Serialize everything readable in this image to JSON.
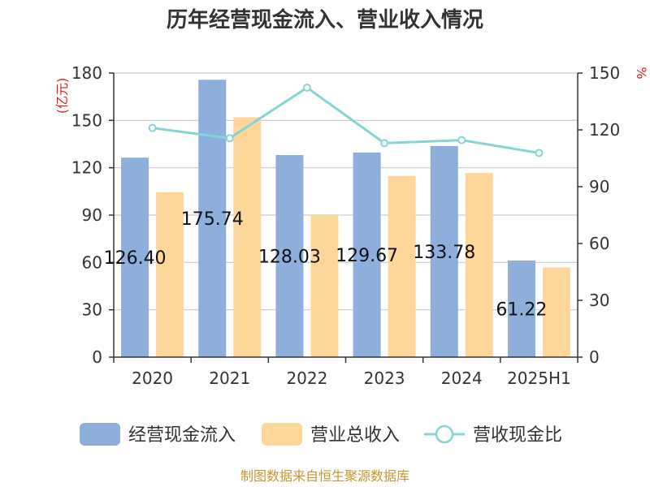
{
  "chart_data": {
    "type": "bar",
    "title": "历年经营现金流入、营业收入情况",
    "categories": [
      "2020",
      "2021",
      "2022",
      "2023",
      "2024",
      "2025H1"
    ],
    "left_axis": {
      "unit": "(亿元)",
      "min": 0,
      "max": 180,
      "ticks": [
        "0",
        "30",
        "60",
        "90",
        "120",
        "150",
        "180"
      ]
    },
    "right_axis": {
      "unit": "%",
      "min": 0,
      "max": 150,
      "ticks": [
        "0",
        "30",
        "60",
        "90",
        "120",
        "150"
      ]
    },
    "series": [
      {
        "name": "经营现金流入",
        "kind": "bar",
        "axis": "left",
        "color": "#8eaedb",
        "values": [
          126.4,
          175.74,
          128.03,
          129.67,
          133.78,
          61.22
        ],
        "labels": [
          "126.40",
          "175.74",
          "128.03",
          "129.67",
          "133.78",
          "61.22"
        ]
      },
      {
        "name": "营业总收入",
        "kind": "bar",
        "axis": "left",
        "color": "#ffd699",
        "values": [
          104.5,
          152.0,
          90.0,
          114.8,
          116.7,
          56.8
        ]
      },
      {
        "name": "营收现金比",
        "kind": "line",
        "axis": "right",
        "color": "#86d4d4",
        "values": [
          121.0,
          115.6,
          142.3,
          113.0,
          114.6,
          107.8
        ]
      }
    ],
    "grid": true,
    "legend": "bottom",
    "source": "制图数据来自恒生聚源数据库"
  }
}
